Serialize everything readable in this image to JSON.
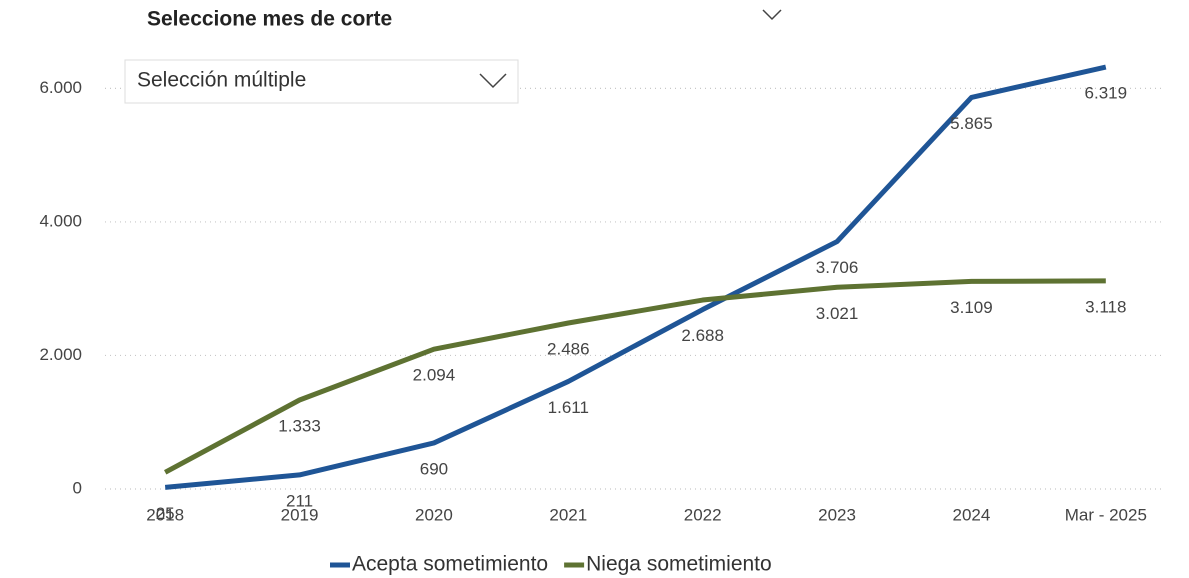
{
  "slicer": {
    "title": "Seleccione mes de corte",
    "selection": "Selección múltiple"
  },
  "chart_data": {
    "type": "line",
    "categories": [
      "2018",
      "2019",
      "2020",
      "2021",
      "2022",
      "2023",
      "2024",
      "Mar - 2025"
    ],
    "series": [
      {
        "name": "Acepta sometimiento",
        "color": "#1f5596",
        "values": [
          25,
          211,
          690,
          1611,
          2688,
          3706,
          5865,
          6319
        ],
        "value_labels": [
          "25",
          "211",
          "690",
          "1.611",
          "2.688",
          "3.706",
          "5.865",
          "6.319"
        ]
      },
      {
        "name": "Niega sometimiento",
        "color": "#5e7232",
        "values": [
          250,
          1333,
          2094,
          2486,
          2830,
          3021,
          3109,
          3118
        ],
        "value_labels": [
          null,
          "1.333",
          "2.094",
          "2.486",
          null,
          "3.021",
          "3.109",
          "3.118"
        ]
      }
    ],
    "ylim": [
      0,
      6500
    ],
    "yticks": [
      0,
      {
        "value": 2000,
        "label": "2.000"
      },
      {
        "value": 4000,
        "label": "4.000"
      },
      {
        "value": 6000,
        "label": "6.000"
      }
    ],
    "grid": true,
    "legend": "bottom"
  }
}
